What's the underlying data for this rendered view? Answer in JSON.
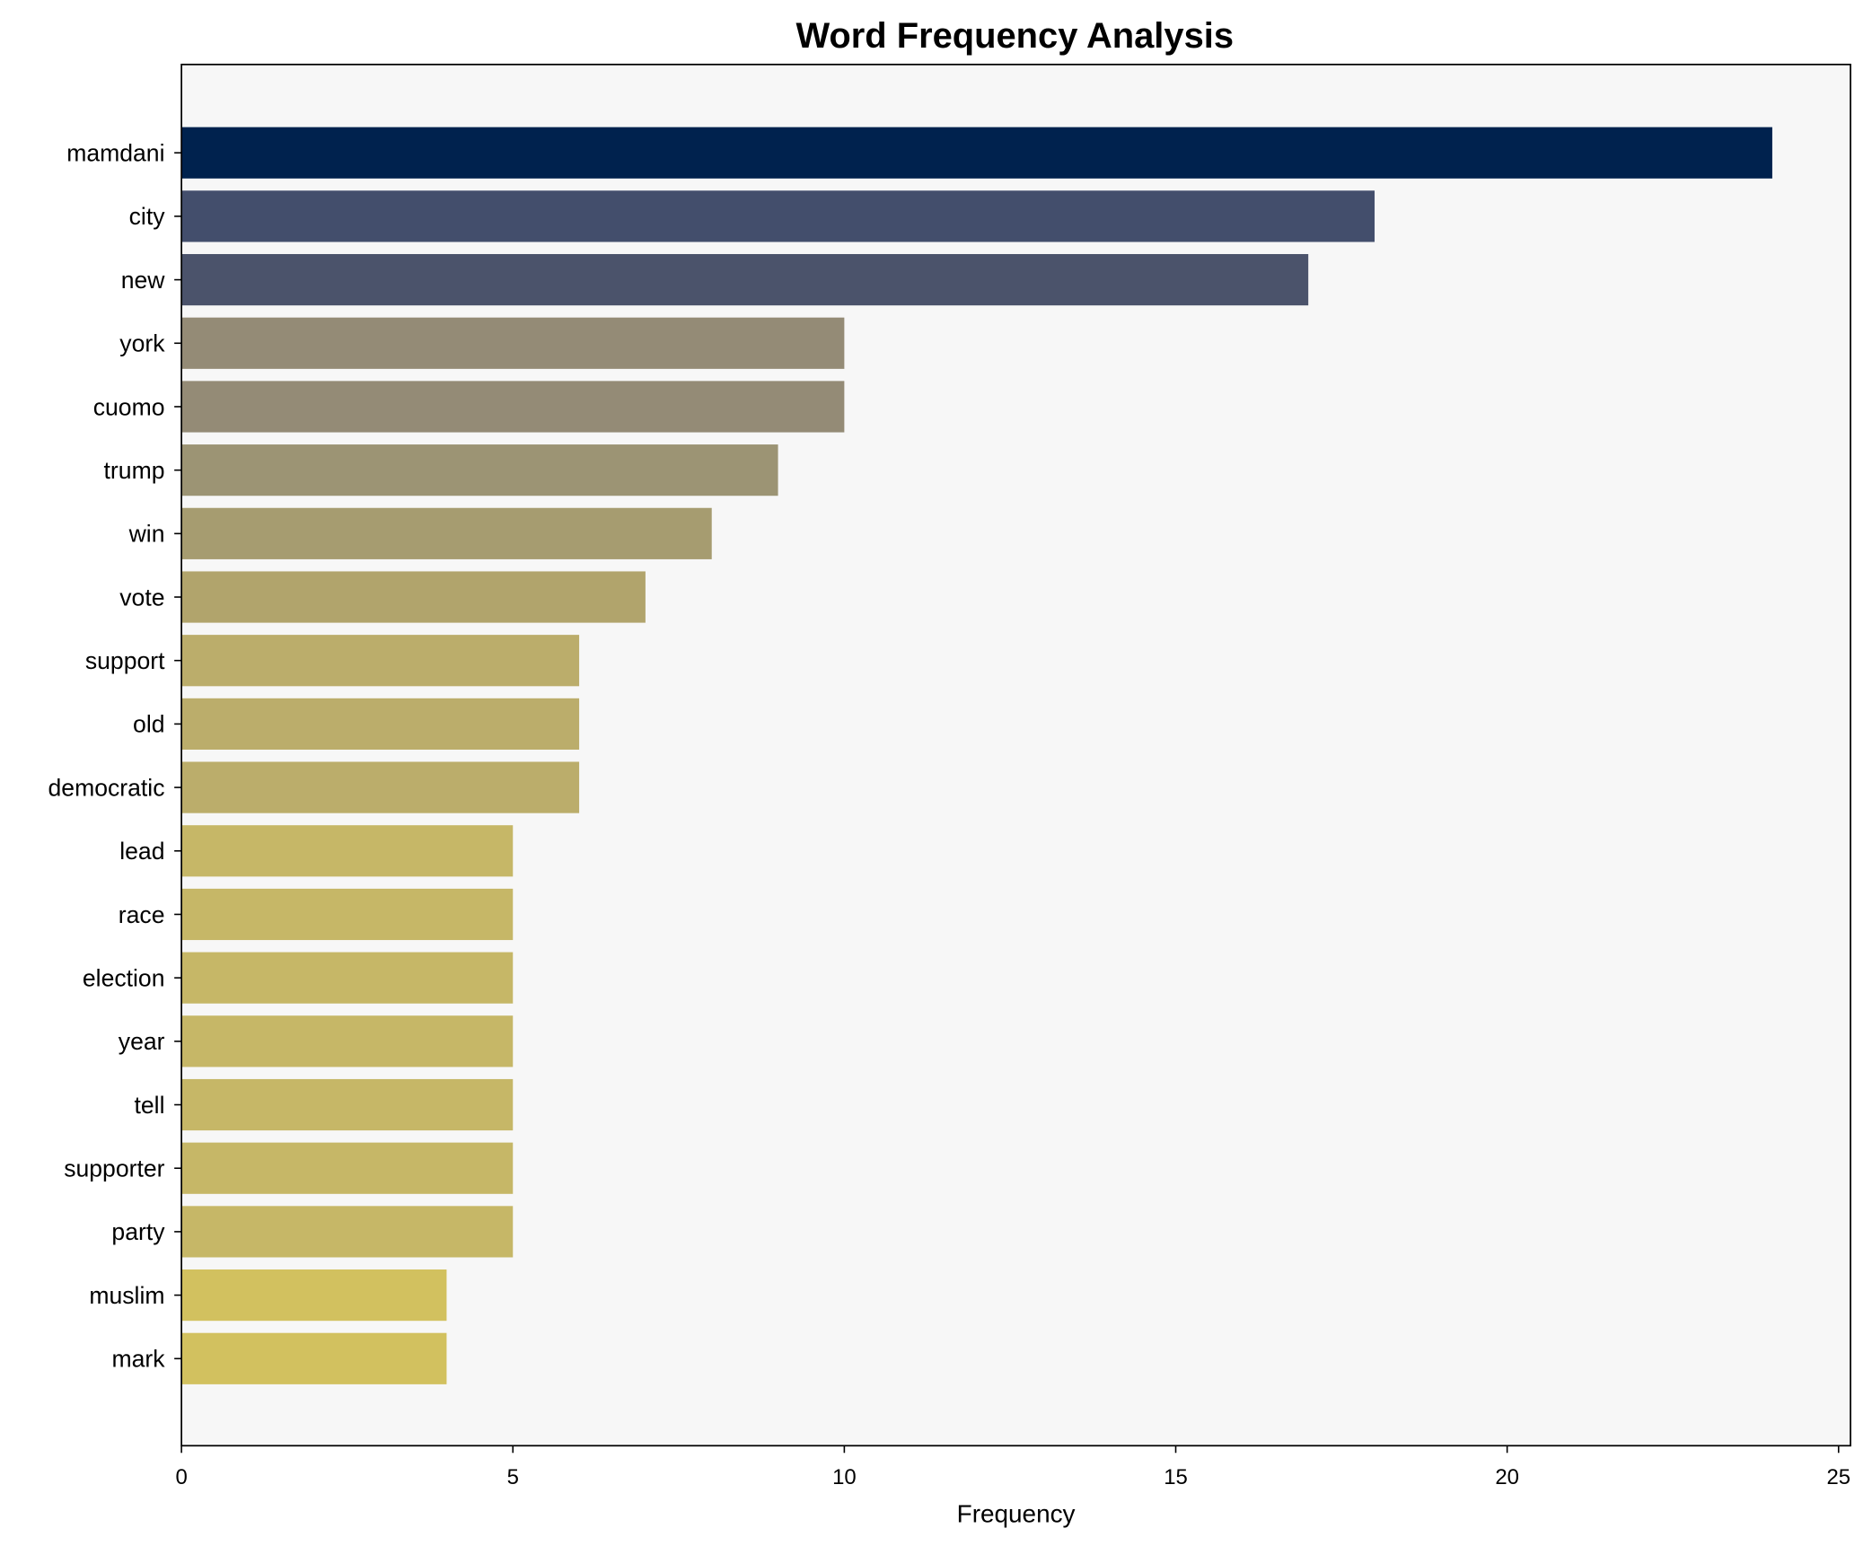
{
  "chart_data": {
    "type": "bar",
    "orientation": "horizontal",
    "title": "Word Frequency Analysis",
    "xlabel": "Frequency",
    "ylabel": "",
    "xlim": [
      0,
      25
    ],
    "xticks": [
      0,
      5,
      10,
      15,
      20,
      25
    ],
    "grid": false,
    "background": "#f7f7f7",
    "categories": [
      "mamdani",
      "city",
      "new",
      "york",
      "cuomo",
      "trump",
      "win",
      "vote",
      "support",
      "old",
      "democratic",
      "lead",
      "race",
      "election",
      "year",
      "tell",
      "supporter",
      "party",
      "muslim",
      "mark"
    ],
    "values": [
      24,
      18,
      17,
      10,
      10,
      9,
      8,
      7,
      6,
      6,
      6,
      5,
      5,
      5,
      5,
      5,
      5,
      5,
      4,
      4
    ],
    "colors": [
      "#00224e",
      "#434e6c",
      "#4b536b",
      "#948b76",
      "#948b76",
      "#9c9474",
      "#a69c70",
      "#b1a46c",
      "#bbad6b",
      "#bbad6b",
      "#bbad6b",
      "#c6b767",
      "#c6b767",
      "#c6b767",
      "#c6b767",
      "#c6b767",
      "#c6b767",
      "#c6b767",
      "#d2c15f",
      "#d2c15f"
    ]
  }
}
